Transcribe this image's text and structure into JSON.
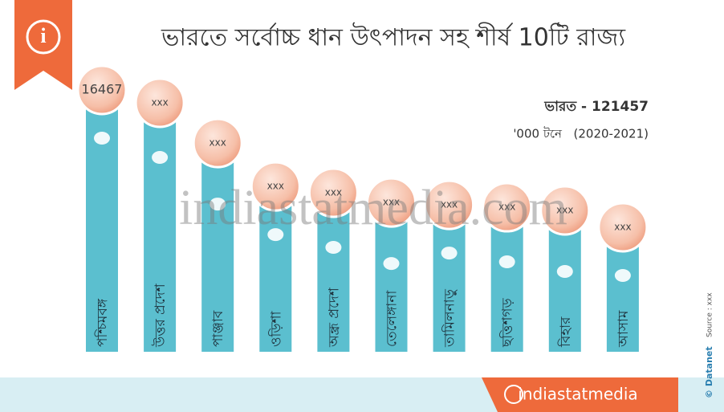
{
  "chart_data": {
    "type": "bar",
    "title": "ভারতে সর্বোচ্চ ধান উৎপাদন সহ শীর্ষ 10টি রাজ্য",
    "total_label": "ভারত - 121457",
    "unit": "'000 টনে",
    "period": "(2020-2021)",
    "categories": [
      "পশ্চিমবঙ্গ",
      "উত্তর প্রদেশ",
      "পাঞ্জাব",
      "ওড়িশা",
      "অন্ধ্র প্রদেশ",
      "তেলেঙ্গানা",
      "তামিলনাড়ু",
      "ছত্তিশগড়",
      "বিহার",
      "আসাম"
    ],
    "values": [
      16467,
      15660,
      13130,
      10400,
      10000,
      9390,
      9240,
      9090,
      8890,
      7830
    ],
    "value_labels": [
      "16467",
      "xxx",
      "xxx",
      "xxx",
      "xxx",
      "xxx",
      "xxx",
      "xxx",
      "xxx",
      "xxx"
    ],
    "color": "#5bbfcf",
    "watermark": "indiastatmedia.com",
    "footer_brand": "indiastatmedia",
    "credit": "© Datanet",
    "source": "Source : xxx"
  }
}
